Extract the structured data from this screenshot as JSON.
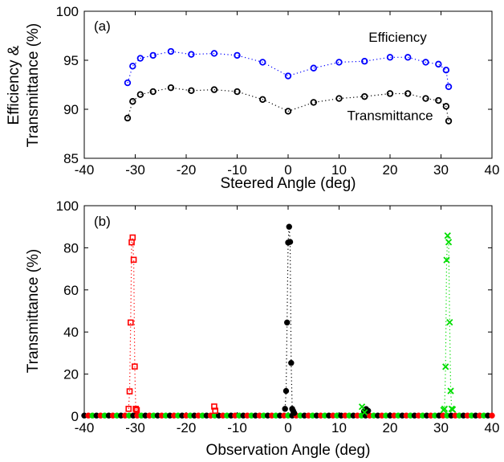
{
  "chart_data": [
    {
      "type": "scatter",
      "panel_label": "(a)",
      "xlabel": "Steered Angle (deg)",
      "ylabel": [
        "Efficiency &",
        "Transmittance (%)"
      ],
      "xlim": [
        -40,
        40
      ],
      "ylim": [
        85,
        100
      ],
      "xticks": [
        -40,
        -30,
        -20,
        -10,
        0,
        10,
        20,
        30,
        40
      ],
      "yticks": [
        85,
        90,
        95,
        100
      ],
      "grid": false,
      "series": [
        {
          "name": "Efficiency",
          "color": "#0000ff",
          "marker": "circle",
          "x": [
            -31.5,
            -30.5,
            -29,
            -26.5,
            -23,
            -19,
            -14.5,
            -10,
            -5,
            0,
            5,
            10,
            15,
            20,
            23.5,
            27,
            29.5,
            31,
            31.5
          ],
          "y": [
            92.7,
            94.4,
            95.2,
            95.5,
            95.9,
            95.6,
            95.7,
            95.5,
            94.8,
            93.4,
            94.2,
            94.8,
            94.9,
            95.3,
            95.3,
            94.8,
            94.6,
            94.0,
            92.3
          ]
        },
        {
          "name": "Transmittance",
          "color": "#000000",
          "marker": "circle",
          "x": [
            -31.5,
            -30.5,
            -29,
            -26.5,
            -23,
            -19,
            -14.5,
            -10,
            -5,
            0,
            5,
            10,
            15,
            20,
            23.5,
            27,
            29.5,
            31,
            31.5
          ],
          "y": [
            89.1,
            90.8,
            91.5,
            91.8,
            92.2,
            91.9,
            92.0,
            91.8,
            91.0,
            89.8,
            90.7,
            91.1,
            91.3,
            91.6,
            91.6,
            91.1,
            90.9,
            90.3,
            88.8
          ]
        }
      ],
      "annotations": [
        {
          "text": "Efficiency",
          "x": 21.5,
          "y": 96.9
        },
        {
          "text": "Transmittance",
          "x": 20,
          "y": 88.9
        }
      ]
    },
    {
      "type": "scatter",
      "panel_label": "(b)",
      "xlabel": "Observation Angle (deg)",
      "ylabel": "Transmittance (%)",
      "xlim": [
        -40,
        40
      ],
      "ylim": [
        0,
        100
      ],
      "xticks": [
        -40,
        -30,
        -20,
        -10,
        0,
        10,
        20,
        30,
        40
      ],
      "yticks": [
        0,
        20,
        40,
        60,
        80,
        100
      ],
      "grid": false,
      "series": [
        {
          "color": "#ff0000",
          "marker": "square",
          "x": [
            -31.3,
            -31.1,
            -30.9,
            -30.7,
            -30.5,
            -30.3,
            -30.1,
            -29.9,
            -29.7,
            -14.5,
            -14.3
          ],
          "y": [
            3.5,
            11.8,
            44.5,
            82.6,
            84.9,
            74.3,
            23.6,
            3.5,
            2.9,
            4.6,
            2.6
          ]
        },
        {
          "color": "#000000",
          "marker": "dot",
          "x": [
            -0.6,
            -0.4,
            -0.2,
            0.0,
            0.2,
            0.4,
            0.6,
            0.8,
            1.0,
            1.2,
            14.9,
            15.3,
            15.7
          ],
          "y": [
            3.5,
            12.0,
            44.5,
            82.5,
            90.0,
            82.8,
            25.3,
            3.5,
            2.5,
            1.5,
            2.4,
            3.4,
            2.6
          ]
        },
        {
          "color": "#00dd00",
          "marker": "x",
          "x": [
            30.5,
            30.7,
            30.9,
            31.1,
            31.3,
            31.5,
            31.7,
            31.9,
            32.1,
            32.3,
            14.5,
            15.0
          ],
          "y": [
            2.9,
            3.5,
            23.5,
            74.2,
            85.8,
            82.7,
            44.6,
            12.0,
            3.5,
            3.2,
            4.5,
            1.8
          ]
        }
      ],
      "baseline": {
        "y": 0.3
      }
    }
  ]
}
